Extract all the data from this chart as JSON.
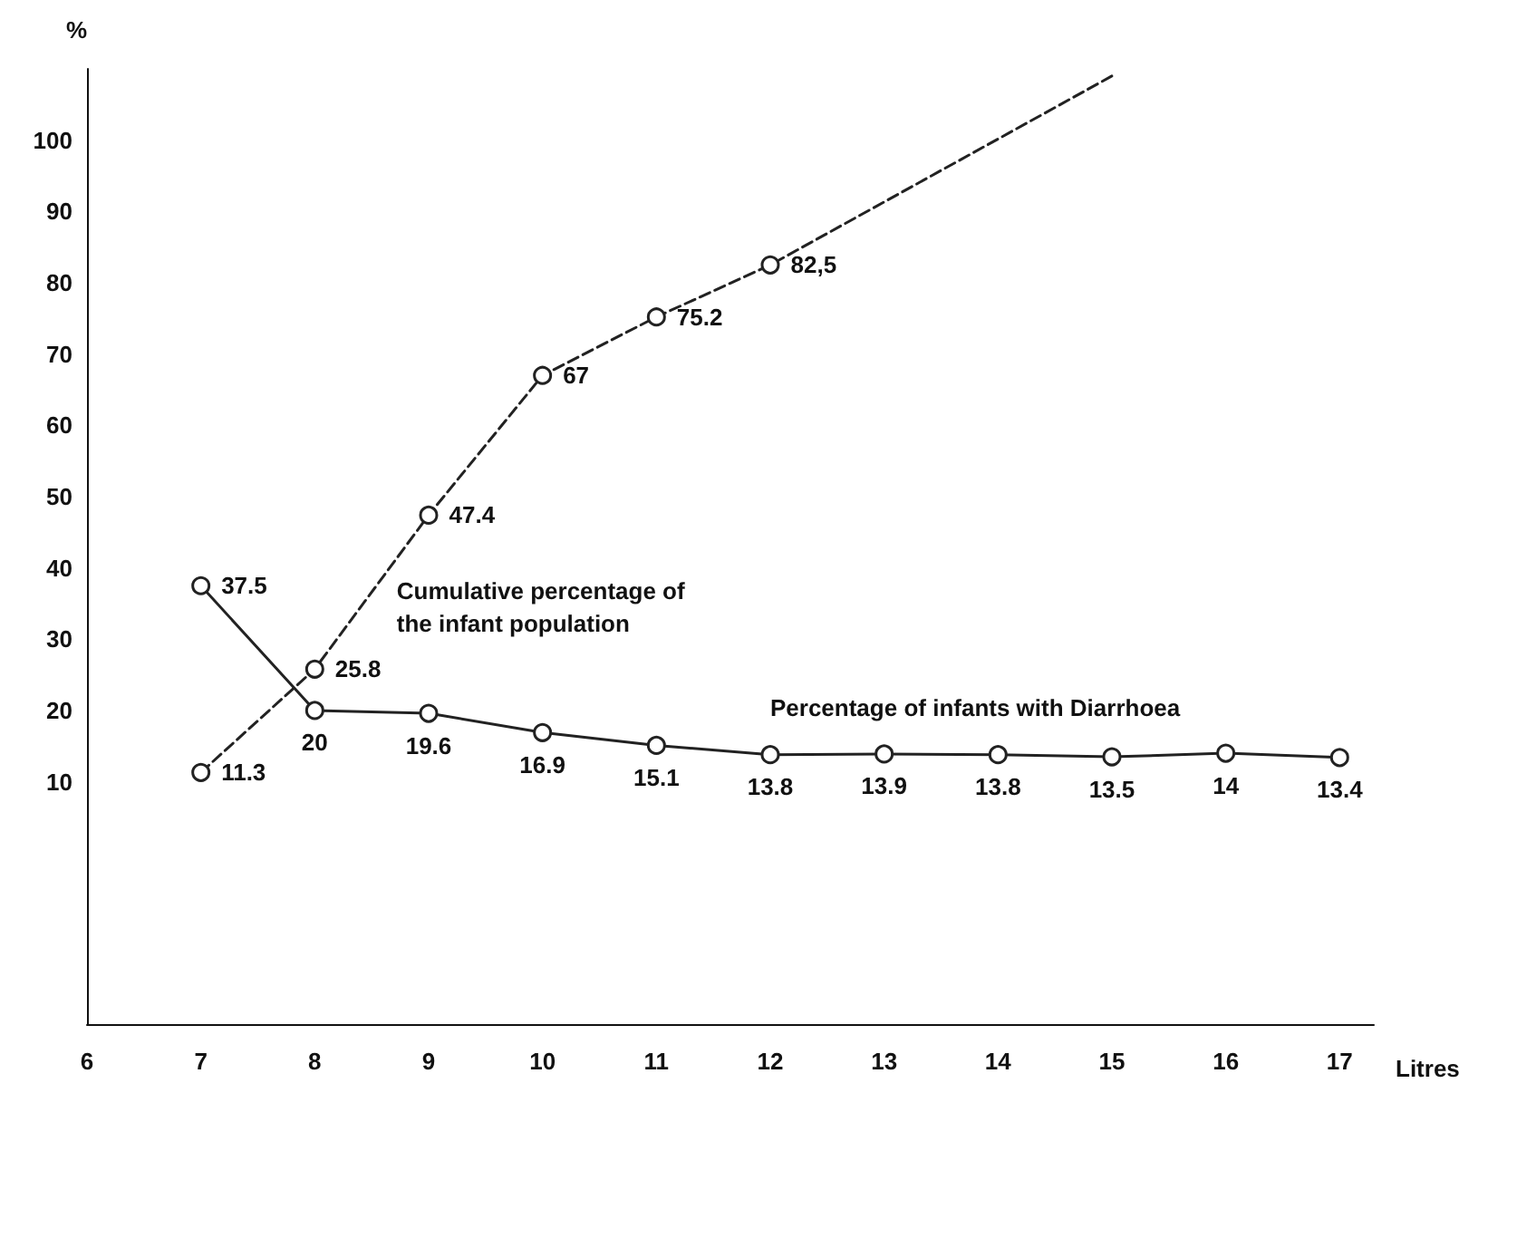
{
  "chart_data": {
    "type": "line",
    "xlabel": "Litres",
    "ylabel": "%",
    "xlim": [
      6,
      17.3
    ],
    "xticks": [
      6,
      7,
      8,
      9,
      10,
      11,
      12,
      13,
      14,
      15,
      16,
      17
    ],
    "ylim": [
      -24,
      110
    ],
    "yticks": [
      10,
      20,
      30,
      40,
      50,
      60,
      70,
      80,
      90,
      100
    ],
    "grid": false,
    "legend": false,
    "marker": "circle",
    "series": [
      {
        "name": "Cumulative percentage of the infant population",
        "color": "#222222",
        "line_style": "dashed",
        "x": [
          7,
          8,
          9,
          10,
          11,
          12,
          15
        ],
        "values": [
          11.3,
          25.8,
          47.4,
          67,
          75.2,
          82.5,
          109
        ],
        "value_labels": [
          "11.3",
          "25.8",
          "47.4",
          "67",
          "75.2",
          "82,5",
          null
        ]
      },
      {
        "name": "Percentage of infants with Diarrhoea",
        "color": "#222222",
        "line_style": "solid",
        "x": [
          7,
          8,
          9,
          10,
          11,
          12,
          13,
          14,
          15,
          16,
          17
        ],
        "values": [
          37.5,
          20,
          19.6,
          16.9,
          15.1,
          13.8,
          13.9,
          13.8,
          13.5,
          14,
          13.4
        ],
        "value_labels": [
          "37.5",
          "20",
          "19.6",
          "16.9",
          "15.1",
          "13.8",
          "13.9",
          "13.8",
          "13.5",
          "14",
          "13.4"
        ]
      }
    ]
  }
}
